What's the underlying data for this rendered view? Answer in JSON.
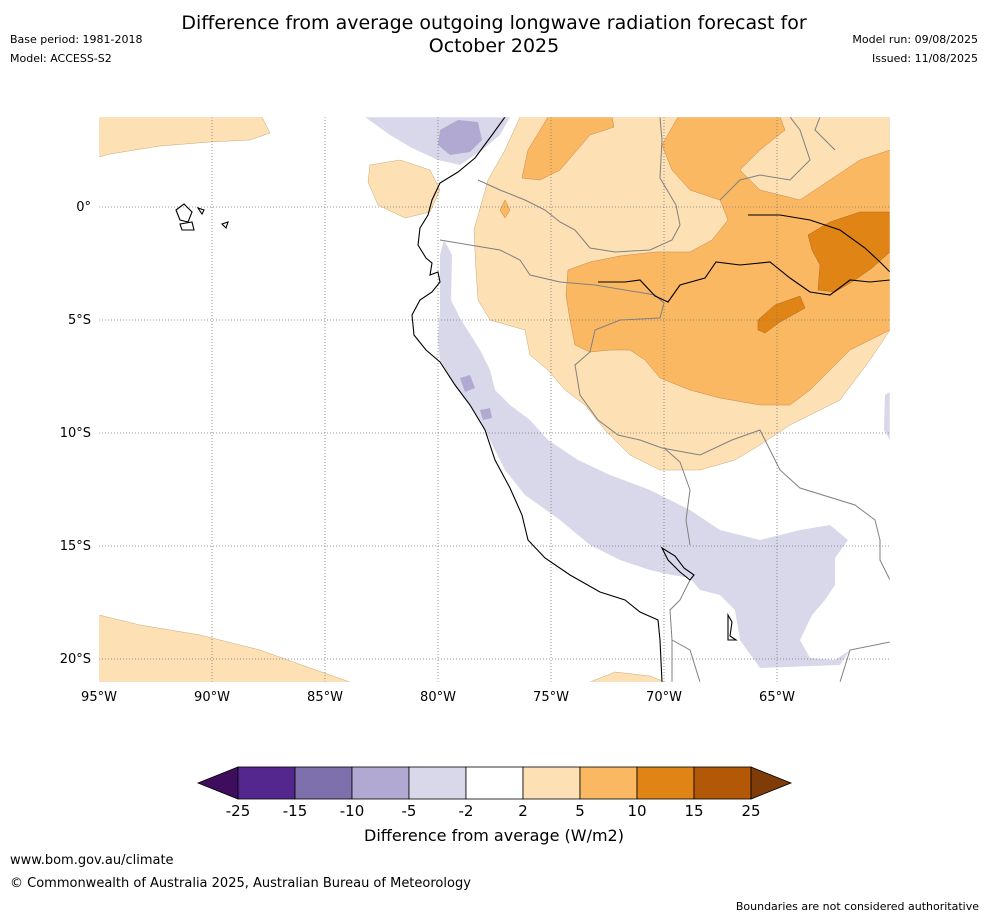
{
  "header": {
    "title_line1": "Difference from average outgoing longwave radiation forecast for",
    "title_line2": "October 2025",
    "base_period": "Base period: 1981-2018",
    "model": "Model: ACCESS-S2",
    "model_run": "Model run: 09/08/2025",
    "issued": "Issued: 11/08/2025"
  },
  "map": {
    "lon_labels": [
      "95°W",
      "90°W",
      "85°W",
      "80°W",
      "75°W",
      "70°W",
      "65°W"
    ],
    "lat_labels": [
      "0°",
      "5°S",
      "10°S",
      "15°S",
      "20°S"
    ],
    "colors": {
      "ocean": "#ffffff",
      "coast": "#000000",
      "border": "#808080",
      "grid": "#777777"
    }
  },
  "legend": {
    "title": "Difference from average (W/m2)",
    "tick_labels": [
      "-25",
      "-15",
      "-10",
      "-5",
      "-2",
      "2",
      "5",
      "10",
      "15",
      "25"
    ],
    "colors": [
      "#3f0d5e",
      "#54278f",
      "#7e6fad",
      "#b1a9d2",
      "#d8d8ea",
      "#ffffff",
      "#fde0b4",
      "#fbb862",
      "#e08416",
      "#b35806",
      "#7f3b08"
    ]
  },
  "footer": {
    "url": "www.bom.gov.au/climate",
    "copyright": "© Commonwealth of Australia 2025, Australian Bureau of Meteorology",
    "note": "Boundaries are not considered authoritative"
  }
}
